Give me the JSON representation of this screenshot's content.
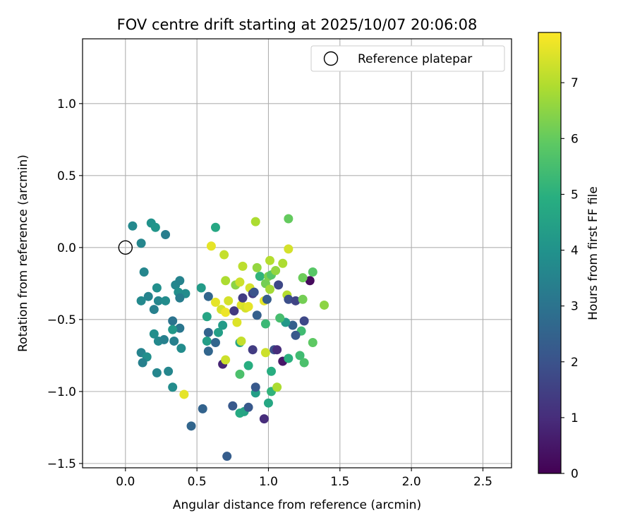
{
  "chart_data": {
    "type": "scatter",
    "title": "FOV centre drift starting at 2025/10/07 20:06:08",
    "xlabel": "Angular distance from reference (arcmin)",
    "ylabel": "Rotation from reference (arcmin)",
    "xlim": [
      -0.3,
      2.7
    ],
    "ylim": [
      -1.53,
      1.45
    ],
    "xticks": [
      0.0,
      0.5,
      1.0,
      1.5,
      2.0,
      2.5
    ],
    "xtick_labels": [
      "0.0",
      "0.5",
      "1.0",
      "1.5",
      "2.0",
      "2.5"
    ],
    "yticks": [
      -1.5,
      -1.0,
      -0.5,
      0.0,
      0.5,
      1.0
    ],
    "ytick_labels": [
      "−1.5",
      "−1.0",
      "−0.5",
      "0.0",
      "0.5",
      "1.0"
    ],
    "grid": true,
    "legend": {
      "location": "top-right",
      "entries": [
        "Reference platepar"
      ]
    },
    "reference_point": {
      "x": 0.0,
      "y": 0.0,
      "label": "Reference platepar"
    },
    "colorbar": {
      "label": "Hours from first FF file",
      "min": 0,
      "max": 7.9,
      "ticks": [
        0,
        1,
        2,
        3,
        4,
        5,
        6,
        7
      ],
      "tick_labels": [
        "0",
        "1",
        "2",
        "3",
        "4",
        "5",
        "6",
        "7"
      ],
      "colormap": "viridis"
    },
    "points": [
      {
        "x": 0.05,
        "y": 0.15,
        "h": 3.7
      },
      {
        "x": 0.11,
        "y": 0.03,
        "h": 3.6
      },
      {
        "x": 0.18,
        "y": 0.17,
        "h": 4.0
      },
      {
        "x": 0.21,
        "y": 0.14,
        "h": 4.1
      },
      {
        "x": 0.28,
        "y": 0.09,
        "h": 3.3
      },
      {
        "x": 0.13,
        "y": -0.17,
        "h": 3.6
      },
      {
        "x": 0.11,
        "y": -0.37,
        "h": 3.7
      },
      {
        "x": 0.16,
        "y": -0.34,
        "h": 3.5
      },
      {
        "x": 0.22,
        "y": -0.28,
        "h": 3.9
      },
      {
        "x": 0.23,
        "y": -0.37,
        "h": 3.6
      },
      {
        "x": 0.28,
        "y": -0.37,
        "h": 3.8
      },
      {
        "x": 0.2,
        "y": -0.43,
        "h": 3.4
      },
      {
        "x": 0.35,
        "y": -0.26,
        "h": 3.6
      },
      {
        "x": 0.38,
        "y": -0.23,
        "h": 3.5
      },
      {
        "x": 0.37,
        "y": -0.31,
        "h": 3.9
      },
      {
        "x": 0.42,
        "y": -0.32,
        "h": 3.8
      },
      {
        "x": 0.38,
        "y": -0.35,
        "h": 3.3
      },
      {
        "x": 0.33,
        "y": -0.51,
        "h": 3.0
      },
      {
        "x": 0.38,
        "y": -0.56,
        "h": 3.1
      },
      {
        "x": 0.33,
        "y": -0.57,
        "h": 4.2
      },
      {
        "x": 0.2,
        "y": -0.6,
        "h": 3.9
      },
      {
        "x": 0.23,
        "y": -0.65,
        "h": 3.7
      },
      {
        "x": 0.27,
        "y": -0.64,
        "h": 3.4
      },
      {
        "x": 0.34,
        "y": -0.65,
        "h": 3.4
      },
      {
        "x": 0.39,
        "y": -0.7,
        "h": 3.8
      },
      {
        "x": 0.11,
        "y": -0.73,
        "h": 3.5
      },
      {
        "x": 0.15,
        "y": -0.76,
        "h": 3.9
      },
      {
        "x": 0.12,
        "y": -0.8,
        "h": 3.4
      },
      {
        "x": 0.3,
        "y": -0.86,
        "h": 3.6
      },
      {
        "x": 0.22,
        "y": -0.87,
        "h": 3.6
      },
      {
        "x": 0.33,
        "y": -0.97,
        "h": 3.8
      },
      {
        "x": 0.41,
        "y": -1.02,
        "h": 7.6
      },
      {
        "x": 0.54,
        "y": -1.12,
        "h": 2.5
      },
      {
        "x": 0.46,
        "y": -1.24,
        "h": 2.6
      },
      {
        "x": 0.71,
        "y": -1.45,
        "h": 2.3
      },
      {
        "x": 0.75,
        "y": -1.1,
        "h": 2.2
      },
      {
        "x": 0.8,
        "y": -1.15,
        "h": 4.8
      },
      {
        "x": 0.83,
        "y": -1.14,
        "h": 4.6
      },
      {
        "x": 0.86,
        "y": -1.11,
        "h": 2.2
      },
      {
        "x": 0.97,
        "y": -1.19,
        "h": 1.0
      },
      {
        "x": 0.91,
        "y": -1.01,
        "h": 4.4
      },
      {
        "x": 0.91,
        "y": -0.97,
        "h": 2.2
      },
      {
        "x": 1.0,
        "y": -1.08,
        "h": 4.7
      },
      {
        "x": 1.02,
        "y": -1.0,
        "h": 5.1
      },
      {
        "x": 1.06,
        "y": -0.97,
        "h": 6.9
      },
      {
        "x": 1.02,
        "y": -0.86,
        "h": 4.9
      },
      {
        "x": 0.8,
        "y": -0.88,
        "h": 5.6
      },
      {
        "x": 0.86,
        "y": -0.82,
        "h": 4.9
      },
      {
        "x": 0.68,
        "y": -0.81,
        "h": 0.8
      },
      {
        "x": 0.7,
        "y": -0.78,
        "h": 7.3
      },
      {
        "x": 0.8,
        "y": -0.66,
        "h": 4.6
      },
      {
        "x": 0.81,
        "y": -0.65,
        "h": 7.2
      },
      {
        "x": 0.89,
        "y": -0.71,
        "h": 1.4
      },
      {
        "x": 0.98,
        "y": -0.73,
        "h": 7.3
      },
      {
        "x": 1.04,
        "y": -0.71,
        "h": 2.0
      },
      {
        "x": 1.06,
        "y": -0.71,
        "h": 1.0
      },
      {
        "x": 1.1,
        "y": -0.79,
        "h": 0.5
      },
      {
        "x": 1.14,
        "y": -0.77,
        "h": 5.0
      },
      {
        "x": 1.22,
        "y": -0.75,
        "h": 5.4
      },
      {
        "x": 1.25,
        "y": -0.8,
        "h": 5.6
      },
      {
        "x": 1.31,
        "y": -0.66,
        "h": 5.9
      },
      {
        "x": 1.23,
        "y": -0.58,
        "h": 5.4
      },
      {
        "x": 1.19,
        "y": -0.61,
        "h": 2.2
      },
      {
        "x": 1.17,
        "y": -0.54,
        "h": 2.4
      },
      {
        "x": 1.25,
        "y": -0.51,
        "h": 1.7
      },
      {
        "x": 1.12,
        "y": -0.52,
        "h": 4.2
      },
      {
        "x": 1.08,
        "y": -0.49,
        "h": 5.5
      },
      {
        "x": 0.98,
        "y": -0.53,
        "h": 5.3
      },
      {
        "x": 0.92,
        "y": -0.47,
        "h": 2.4
      },
      {
        "x": 0.78,
        "y": -0.52,
        "h": 7.5
      },
      {
        "x": 0.68,
        "y": -0.54,
        "h": 4.3
      },
      {
        "x": 0.65,
        "y": -0.59,
        "h": 4.4
      },
      {
        "x": 0.58,
        "y": -0.59,
        "h": 2.5
      },
      {
        "x": 0.57,
        "y": -0.65,
        "h": 4.4
      },
      {
        "x": 0.63,
        "y": -0.66,
        "h": 2.6
      },
      {
        "x": 0.58,
        "y": -0.72,
        "h": 2.6
      },
      {
        "x": 0.57,
        "y": -0.48,
        "h": 4.6
      },
      {
        "x": 0.53,
        "y": -0.28,
        "h": 4.3
      },
      {
        "x": 0.58,
        "y": -0.34,
        "h": 2.6
      },
      {
        "x": 0.63,
        "y": -0.38,
        "h": 7.6
      },
      {
        "x": 0.67,
        "y": -0.43,
        "h": 7.4
      },
      {
        "x": 0.7,
        "y": -0.45,
        "h": 7.7
      },
      {
        "x": 0.72,
        "y": -0.37,
        "h": 7.4
      },
      {
        "x": 0.76,
        "y": -0.44,
        "h": 1.3
      },
      {
        "x": 0.77,
        "y": -0.26,
        "h": 6.5
      },
      {
        "x": 0.8,
        "y": -0.24,
        "h": 7.3
      },
      {
        "x": 0.81,
        "y": -0.4,
        "h": 7.5
      },
      {
        "x": 0.82,
        "y": -0.35,
        "h": 1.4
      },
      {
        "x": 0.84,
        "y": -0.42,
        "h": 7.4
      },
      {
        "x": 0.86,
        "y": -0.41,
        "h": 7.6
      },
      {
        "x": 0.87,
        "y": -0.28,
        "h": 7.4
      },
      {
        "x": 0.89,
        "y": -0.32,
        "h": 1.4
      },
      {
        "x": 0.9,
        "y": -0.31,
        "h": 2.0
      },
      {
        "x": 0.92,
        "y": -0.14,
        "h": 6.6
      },
      {
        "x": 0.94,
        "y": -0.2,
        "h": 5.1
      },
      {
        "x": 0.97,
        "y": -0.37,
        "h": 7.6
      },
      {
        "x": 0.99,
        "y": -0.36,
        "h": 2.3
      },
      {
        "x": 0.98,
        "y": -0.25,
        "h": 6.2
      },
      {
        "x": 1.0,
        "y": -0.2,
        "h": 6.3
      },
      {
        "x": 1.01,
        "y": -0.29,
        "h": 6.8
      },
      {
        "x": 1.02,
        "y": -0.19,
        "h": 5.8
      },
      {
        "x": 1.05,
        "y": -0.16,
        "h": 6.6
      },
      {
        "x": 1.07,
        "y": -0.26,
        "h": 1.7
      },
      {
        "x": 1.1,
        "y": -0.11,
        "h": 6.9
      },
      {
        "x": 1.13,
        "y": -0.33,
        "h": 7.0
      },
      {
        "x": 1.14,
        "y": -0.36,
        "h": 1.9
      },
      {
        "x": 1.19,
        "y": -0.37,
        "h": 1.6
      },
      {
        "x": 1.24,
        "y": -0.36,
        "h": 6.2
      },
      {
        "x": 1.29,
        "y": -0.23,
        "h": 0.2
      },
      {
        "x": 1.24,
        "y": -0.21,
        "h": 6.1
      },
      {
        "x": 1.31,
        "y": -0.17,
        "h": 5.8
      },
      {
        "x": 1.39,
        "y": -0.4,
        "h": 6.5
      },
      {
        "x": 1.01,
        "y": -0.09,
        "h": 7.0
      },
      {
        "x": 1.14,
        "y": -0.01,
        "h": 7.4
      },
      {
        "x": 1.14,
        "y": 0.2,
        "h": 6.0
      },
      {
        "x": 0.91,
        "y": 0.18,
        "h": 6.9
      },
      {
        "x": 0.69,
        "y": -0.05,
        "h": 7.2
      },
      {
        "x": 0.6,
        "y": 0.01,
        "h": 7.6
      },
      {
        "x": 0.63,
        "y": 0.14,
        "h": 4.7
      },
      {
        "x": 0.7,
        "y": -0.23,
        "h": 6.9
      },
      {
        "x": 0.82,
        "y": -0.13,
        "h": 7.1
      }
    ]
  }
}
